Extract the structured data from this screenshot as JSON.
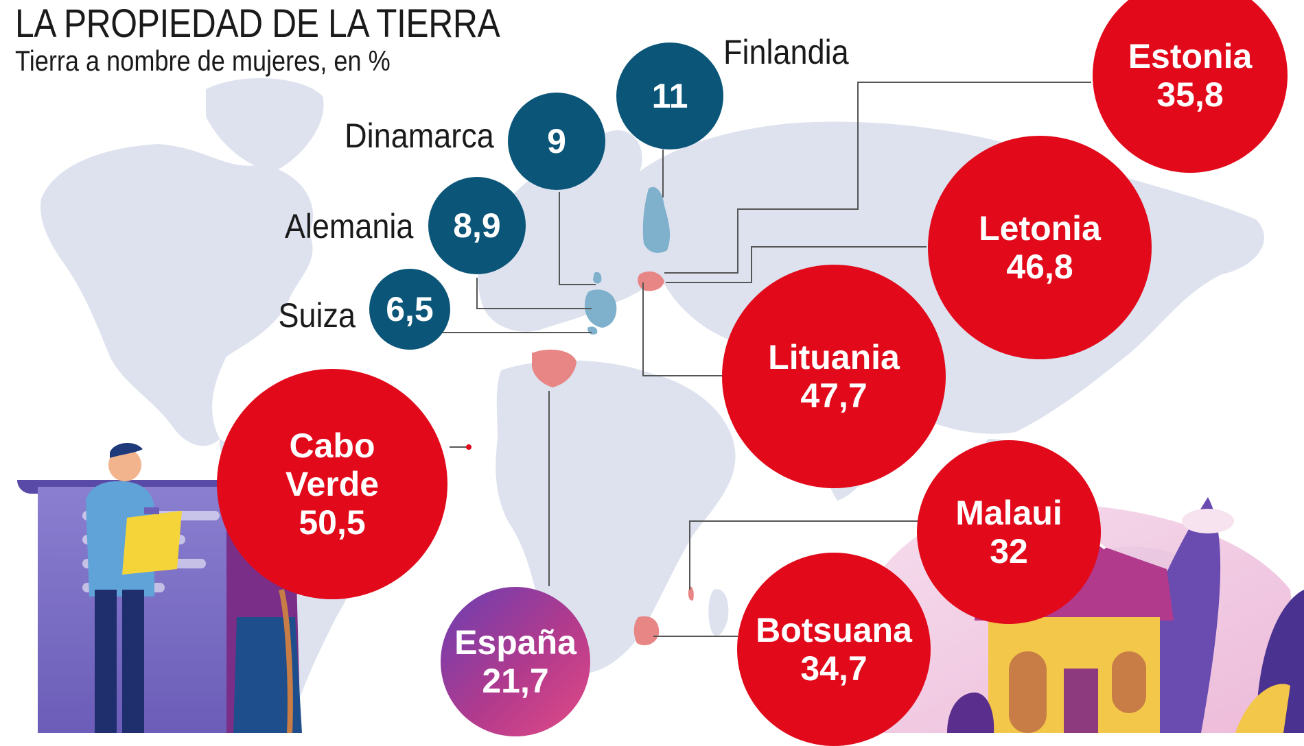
{
  "header": {
    "title": "LA PROPIEDAD DE LA TIERRA",
    "subtitle": "Tierra a nombre de mujeres, en %"
  },
  "colors": {
    "low_share": "#0a5578",
    "high_share": "#e1091a",
    "spain_gradient_start": "#6a3fb3",
    "spain_gradient_end": "#e24a86",
    "map_land": "#dde2ee",
    "highlight_blue": "#7fb0cc",
    "highlight_red": "#e88585"
  },
  "countries": [
    {
      "id": "finlandia",
      "name": "Finlandia",
      "value": "11"
    },
    {
      "id": "dinamarca",
      "name": "Dinamarca",
      "value": "9"
    },
    {
      "id": "alemania",
      "name": "Alemania",
      "value": "8,9"
    },
    {
      "id": "suiza",
      "name": "Suiza",
      "value": "6,5"
    },
    {
      "id": "estonia",
      "name": "Estonia",
      "value": "35,8"
    },
    {
      "id": "letonia",
      "name": "Letonia",
      "value": "46,8"
    },
    {
      "id": "lituania",
      "name": "Lituania",
      "value": "47,7"
    },
    {
      "id": "cabo-verde",
      "name": "Cabo Verde",
      "value": "50,5"
    },
    {
      "id": "malaui",
      "name": "Malaui",
      "value": "32"
    },
    {
      "id": "botsuana",
      "name": "Botsuana",
      "value": "34,7"
    },
    {
      "id": "espana",
      "name": "España",
      "value": "21,7"
    }
  ],
  "illustrations": [
    "people-with-document",
    "house-with-plants"
  ]
}
